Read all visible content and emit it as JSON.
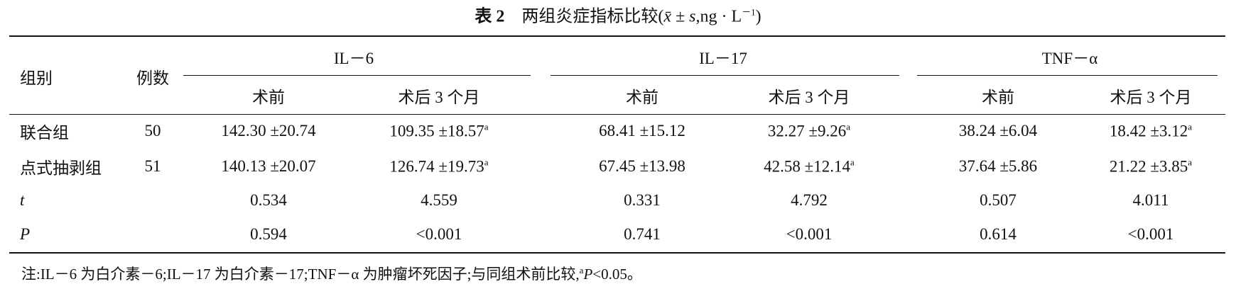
{
  "title": {
    "label": "表 2",
    "text": "两组炎症指标比较(",
    "stat": "x̄ ± s",
    "unit": ",ng · L",
    "exp": "－1",
    "close": ")"
  },
  "header": {
    "group": "组别",
    "n": "例数",
    "indicators": [
      {
        "name": "IL－6",
        "sub": [
          "术前",
          "术后 3 个月"
        ]
      },
      {
        "name": "IL－17",
        "sub": [
          "术前",
          "术后 3 个月"
        ]
      },
      {
        "name": "TNF－α",
        "sub": [
          "术前",
          "术后 3 个月"
        ]
      }
    ]
  },
  "rows": [
    {
      "group": "联合组",
      "n": 50,
      "cells": [
        {
          "text": "142.30 ±20.74"
        },
        {
          "text": "109.35 ±18.57",
          "sup": "a"
        },
        {
          "text": "68.41 ±15.12"
        },
        {
          "text": "32.27 ±9.26",
          "sup": "a"
        },
        {
          "text": "38.24 ±6.04"
        },
        {
          "text": "18.42 ±3.12",
          "sup": "a"
        }
      ]
    },
    {
      "group": "点式抽剥组",
      "n": 51,
      "cells": [
        {
          "text": "140.13 ±20.07"
        },
        {
          "text": "126.74 ±19.73",
          "sup": "a"
        },
        {
          "text": "67.45 ±13.98"
        },
        {
          "text": "42.58 ±12.14",
          "sup": "a"
        },
        {
          "text": "37.64 ±5.86"
        },
        {
          "text": "21.22 ±3.85",
          "sup": "a"
        }
      ]
    },
    {
      "group": "t",
      "cells": [
        {
          "text": "0.534"
        },
        {
          "text": "4.559"
        },
        {
          "text": "0.331"
        },
        {
          "text": "4.792"
        },
        {
          "text": "0.507"
        },
        {
          "text": "4.011"
        }
      ]
    },
    {
      "group": "P",
      "cells": [
        {
          "text": "0.594"
        },
        {
          "text": "<0.001"
        },
        {
          "text": "0.741"
        },
        {
          "text": "<0.001"
        },
        {
          "text": "0.614"
        },
        {
          "text": "<0.001"
        }
      ]
    }
  ],
  "note": {
    "text": "注:IL－6 为白介素－6;IL－17 为白介素－17;TNF－α 为肿瘤坏死因子;与同组术前比较,",
    "sup": "a",
    "p": "P",
    "rest": "<0.05。"
  }
}
